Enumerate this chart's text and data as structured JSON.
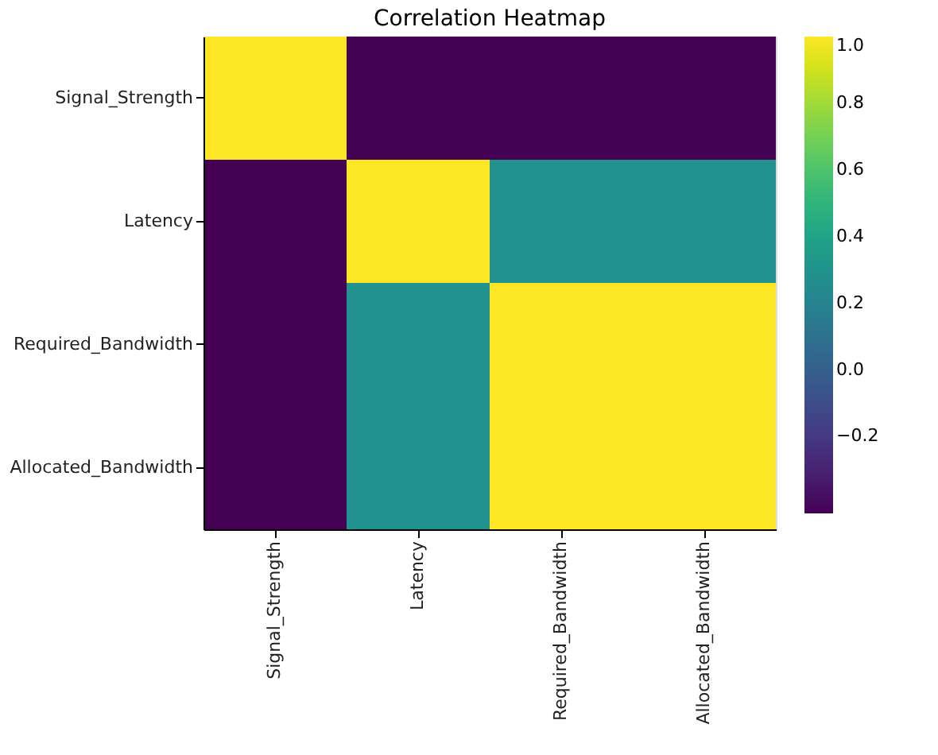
{
  "chart_data": {
    "type": "heatmap",
    "title": "Correlation Heatmap",
    "categories": [
      "Signal_Strength",
      "Latency",
      "Required_Bandwidth",
      "Allocated_Bandwidth"
    ],
    "y_categories": [
      "Signal_Strength",
      "Latency",
      "Required_Bandwidth",
      "Allocated_Bandwidth"
    ],
    "cells": [
      [
        1.0,
        -0.43,
        -0.43,
        -0.43
      ],
      [
        -0.43,
        1.0,
        0.29,
        0.29
      ],
      [
        -0.43,
        0.29,
        1.0,
        1.0
      ],
      [
        -0.43,
        0.29,
        1.0,
        1.0
      ]
    ],
    "clim": [
      -0.43,
      1.0
    ],
    "cticks": [
      -0.2,
      {
        "value": 0,
        "label": "0.0"
      },
      0.2,
      0.4,
      0.6,
      0.8,
      {
        "value": 1,
        "label": "1.0"
      }
    ]
  }
}
